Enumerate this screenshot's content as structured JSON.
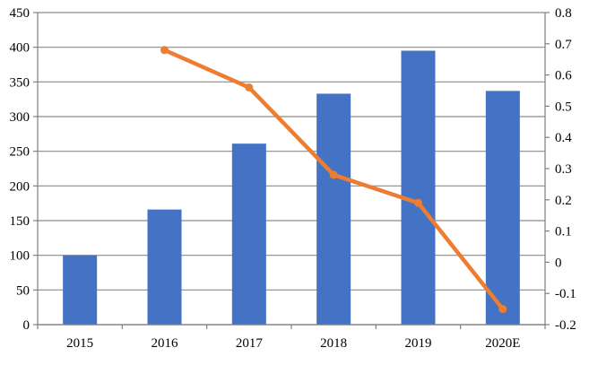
{
  "chart_data": {
    "type": "bar",
    "categories": [
      "2015",
      "2016",
      "2017",
      "2018",
      "2019",
      "2020E"
    ],
    "series": [
      {
        "type": "bar",
        "axis": "left",
        "color": "#4472c4",
        "values": [
          100,
          166,
          261,
          333,
          395,
          337
        ]
      },
      {
        "type": "line",
        "axis": "right",
        "color": "#ed7d31",
        "values": [
          null,
          0.68,
          0.56,
          0.28,
          0.19,
          -0.15
        ]
      }
    ],
    "y_left": {
      "min": 0,
      "max": 450,
      "ticks": [
        "0",
        "50",
        "100",
        "150",
        "200",
        "250",
        "300",
        "350",
        "400",
        "450"
      ]
    },
    "y_right": {
      "min": -0.2,
      "max": 0.8,
      "ticks": [
        "-0.2",
        "-0.1",
        "0",
        "0.1",
        "0.2",
        "0.3",
        "0.4",
        "0.5",
        "0.6",
        "0.7",
        "0.8"
      ]
    },
    "grid": true,
    "legend": "none"
  }
}
